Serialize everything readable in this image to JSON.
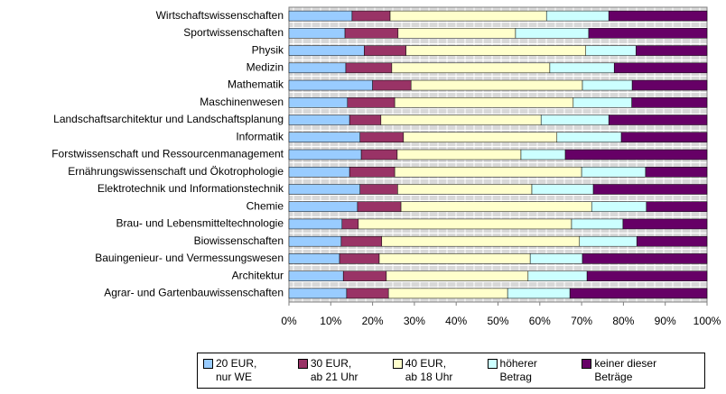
{
  "chart_data": {
    "type": "stacked-bar-horizontal-percent",
    "categories": [
      "Wirtschaftswissenschaften",
      "Sportwissenschaften",
      "Physik",
      "Medizin",
      "Mathematik",
      "Maschinenwesen",
      "Landschaftsarchitektur und Landschaftsplanung",
      "Informatik",
      "Forstwissenschaft und Ressourcenmanagement",
      "Ernährungswissenschaft und Ökotrophologie",
      "Elektrotechnik und Informationstechnik",
      "Chemie",
      "Brau- und Lebensmitteltechnologie",
      "Biowissenschaften",
      "Bauingenieur- und Vermessungswesen",
      "Architektur",
      "Agrar- und Gartenbauwissenschaften"
    ],
    "series": [
      {
        "name": "20 EUR,\nnur WE",
        "color": "#99ccff",
        "values": [
          15.1,
          13.4,
          18,
          13.6,
          20,
          14,
          14.5,
          17,
          17.3,
          14.5,
          17,
          16.4,
          12.7,
          12.5,
          12.1,
          13,
          13.8
        ]
      },
      {
        "name": "30 EUR,\nab 21 Uhr",
        "color": "#993366",
        "values": [
          9.1,
          12.7,
          10,
          11,
          9.2,
          11.3,
          7.5,
          10.4,
          8.6,
          10.8,
          9,
          10.4,
          3.9,
          9.7,
          9.5,
          10.3,
          10
        ]
      },
      {
        "name": "40 EUR,\nab 18 Uhr",
        "color": "#ffffcc",
        "values": [
          37.4,
          28.1,
          43,
          37.8,
          41,
          42.7,
          38.3,
          36.7,
          29.6,
          44.7,
          32.1,
          45.6,
          51,
          47.3,
          36.1,
          33.9,
          28.5
        ]
      },
      {
        "name": "höherer Betrag",
        "color": "#ccffff",
        "values": [
          14.9,
          17.5,
          12,
          15.4,
          11.9,
          14,
          16.2,
          15.4,
          10.6,
          15.3,
          14.7,
          13.1,
          12.3,
          13.7,
          12.5,
          14.1,
          14.9
        ]
      },
      {
        "name": "keiner dieser Beträge",
        "color": "#660066",
        "values": [
          23.5,
          28.3,
          17,
          22.2,
          17.9,
          18,
          23.5,
          20.5,
          33.9,
          14.7,
          27.2,
          14.5,
          20.1,
          16.8,
          29.8,
          28.7,
          32.8
        ]
      }
    ],
    "xlim": [
      0,
      100
    ],
    "xticks": [
      {
        "value": 0,
        "label": "0%"
      },
      {
        "value": 10,
        "label": "10%"
      },
      {
        "value": 20,
        "label": "20%"
      },
      {
        "value": 30,
        "label": "30%"
      },
      {
        "value": 40,
        "label": "40%"
      },
      {
        "value": 50,
        "label": "50%"
      },
      {
        "value": 60,
        "label": "60%"
      },
      {
        "value": 70,
        "label": "70%"
      },
      {
        "value": 80,
        "label": "80%"
      },
      {
        "value": 90,
        "label": "90%"
      },
      {
        "value": 100,
        "label": "100%"
      }
    ],
    "legend": "bottom"
  }
}
